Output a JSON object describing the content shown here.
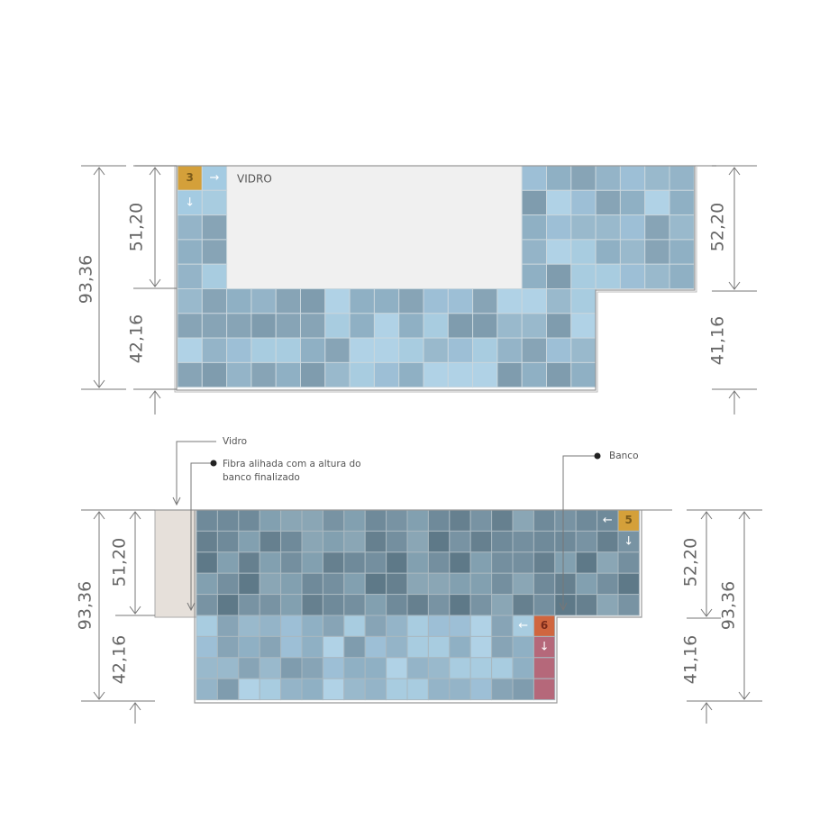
{
  "top_view": {
    "start_tile": "3",
    "arrow_right": "→",
    "arrow_down": "↓",
    "glass": "VIDRO",
    "dims": {
      "total_left": "93,36",
      "upper_left": "51,20",
      "lower_left": "42,16",
      "upper_right": "52,20",
      "lower_right": "41,16"
    }
  },
  "bottom_view": {
    "annotations": {
      "glass": "Vidro",
      "fiber": [
        "Fibra alihada com a altura do",
        "banco finalizado"
      ],
      "bench": "Banco"
    },
    "start_tile_a": "5",
    "arrow_a_left": "←",
    "arrow_a_down": "↓",
    "start_tile_b": "6",
    "arrow_b_left": "←",
    "arrow_b_down": "↓",
    "dims": {
      "total_left": "93,36",
      "upper_left": "51,20",
      "lower_left": "42,16",
      "upper_right": "52,20",
      "lower_right": "41,16",
      "total_right": "93,36"
    }
  }
}
